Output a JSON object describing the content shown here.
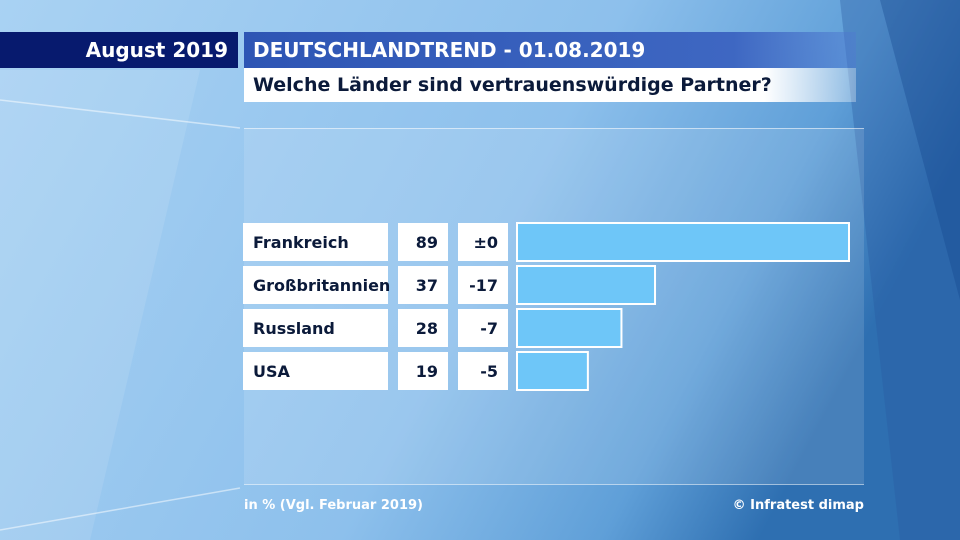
{
  "header": {
    "date": "August 2019",
    "title": "DEUTSCHLANDTREND - 01.08.2019",
    "question": "Welche Länder sind vertrauenswürdige Partner?"
  },
  "footer": {
    "note": "in % (Vgl. Februar 2019)",
    "source": "© Infratest dimap"
  },
  "colors": {
    "bar": "#6ec6f8",
    "bar_border": "#ffffff",
    "date_bg": "#071a6e",
    "header_bg": "#2e55b4"
  },
  "chart_data": {
    "type": "bar",
    "orientation": "horizontal",
    "title": "Welche Länder sind vertrauenswürdige Partner?",
    "unit": "%",
    "categories": [
      "Frankreich",
      "Großbritannien",
      "Russland",
      "USA"
    ],
    "values": [
      89,
      37,
      28,
      19
    ],
    "changes": [
      "±0",
      "-17",
      "-7",
      "-5"
    ],
    "xlim": [
      0,
      100
    ]
  }
}
